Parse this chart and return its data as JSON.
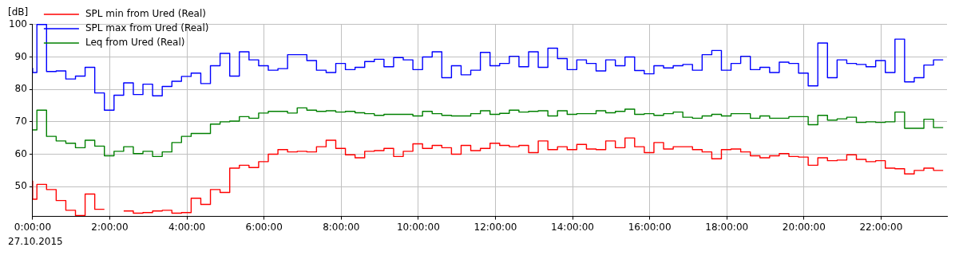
{
  "chart_data": {
    "type": "step",
    "ylabel": "[dB]",
    "annotations": [
      "27.10.2015"
    ],
    "x": [
      0,
      0.11,
      0.36,
      0.61,
      0.86,
      1.11,
      1.36,
      1.61,
      1.86,
      2.11,
      2.36,
      2.61,
      2.86,
      3.11,
      3.36,
      3.61,
      3.86,
      4.11,
      4.36,
      4.61,
      4.86,
      5.11,
      5.36,
      5.61,
      5.86,
      6.11,
      6.36,
      6.61,
      6.86,
      7.11,
      7.36,
      7.61,
      7.86,
      8.11,
      8.36,
      8.61,
      8.86,
      9.11,
      9.36,
      9.61,
      9.86,
      10.11,
      10.36,
      10.61,
      10.86,
      11.11,
      11.36,
      11.61,
      11.86,
      12.11,
      12.36,
      12.61,
      12.86,
      13.11,
      13.36,
      13.61,
      13.86,
      14.11,
      14.36,
      14.61,
      14.86,
      15.11,
      15.36,
      15.61,
      15.86,
      16.11,
      16.36,
      16.61,
      16.86,
      17.11,
      17.36,
      17.61,
      17.86,
      18.11,
      18.36,
      18.61,
      18.86,
      19.11,
      19.36,
      19.61,
      19.86,
      20.11,
      20.36,
      20.61,
      20.86,
      21.11,
      21.36,
      21.61,
      21.86,
      22.11,
      22.36,
      22.61,
      22.86,
      23.11,
      23.36,
      23.61
    ],
    "series": [
      {
        "name": "SPL min from Ured (Real)",
        "color": "#ff0000",
        "values": [
          51.8,
          46.1,
          50.7,
          49.1,
          45.7,
          42.7,
          41.1,
          47.7,
          43.0,
          null,
          42.5,
          42.5,
          41.8,
          42.0,
          42.5,
          42.7,
          41.8,
          42.0,
          46.4,
          44.5,
          49.1,
          48.2,
          55.7,
          56.6,
          55.9,
          57.7,
          60.0,
          61.4,
          60.7,
          60.9,
          60.7,
          62.3,
          64.3,
          61.8,
          59.8,
          58.9,
          60.9,
          61.1,
          61.8,
          59.3,
          60.9,
          63.2,
          61.8,
          62.7,
          62.0,
          60.0,
          62.7,
          61.1,
          61.8,
          63.4,
          62.7,
          62.3,
          62.7,
          60.5,
          64.1,
          61.4,
          62.3,
          61.4,
          63.0,
          61.6,
          61.4,
          64.1,
          62.0,
          65.0,
          62.3,
          60.5,
          63.6,
          61.6,
          62.3,
          62.3,
          61.4,
          60.7,
          58.6,
          61.4,
          61.6,
          60.7,
          59.5,
          58.9,
          59.5,
          60.2,
          59.3,
          59.1,
          56.6,
          58.9,
          58.0,
          58.2,
          59.8,
          58.4,
          57.7,
          58.0,
          55.7,
          55.5,
          53.9,
          55.0,
          55.7,
          55.0
        ]
      },
      {
        "name": "SPL max from Ured (Real)",
        "color": "#0000ff",
        "values": [
          86.6,
          85.2,
          100,
          85.5,
          85.7,
          83.2,
          84.1,
          86.8,
          78.9,
          73.6,
          78.2,
          82.0,
          78.4,
          81.6,
          78.0,
          80.9,
          82.5,
          84.0,
          85.0,
          81.8,
          87.3,
          91.1,
          84.1,
          91.6,
          89.1,
          87.3,
          85.9,
          86.4,
          90.7,
          90.7,
          88.9,
          85.9,
          85.2,
          88.0,
          86.1,
          86.8,
          88.6,
          89.3,
          87.0,
          89.8,
          89.1,
          86.1,
          90.0,
          91.6,
          83.6,
          87.3,
          84.5,
          85.9,
          91.4,
          87.3,
          88.0,
          90.2,
          87.0,
          91.6,
          86.8,
          92.7,
          89.5,
          86.1,
          89.1,
          88.0,
          85.7,
          89.1,
          87.3,
          90.0,
          85.8,
          84.8,
          87.3,
          86.6,
          87.3,
          87.7,
          85.9,
          90.7,
          92.0,
          85.9,
          88.0,
          90.2,
          86.1,
          86.8,
          85.2,
          88.4,
          88.0,
          85.0,
          81.1,
          94.3,
          83.6,
          89.1,
          88.0,
          87.7,
          87.0,
          88.9,
          85.2,
          95.5,
          82.3,
          83.6,
          87.5,
          89.1
        ]
      },
      {
        "name": "Leq from Ured (Real)",
        "color": "#008000",
        "values": [
          67.5,
          67.5,
          73.6,
          65.5,
          64.1,
          63.4,
          62.0,
          64.3,
          62.5,
          59.5,
          60.9,
          62.3,
          60.2,
          60.9,
          59.3,
          60.7,
          63.6,
          65.5,
          66.4,
          66.4,
          69.3,
          70.0,
          70.2,
          71.6,
          71.1,
          72.7,
          73.2,
          73.2,
          72.7,
          74.3,
          73.6,
          73.2,
          73.4,
          73.0,
          73.2,
          72.8,
          72.5,
          72.0,
          72.3,
          72.3,
          72.3,
          71.8,
          73.2,
          72.5,
          72.0,
          71.8,
          71.8,
          72.5,
          73.4,
          72.3,
          72.6,
          73.6,
          73.0,
          73.2,
          73.4,
          71.8,
          73.4,
          72.3,
          72.5,
          72.5,
          73.4,
          72.8,
          73.2,
          73.9,
          72.3,
          72.5,
          72.0,
          72.5,
          73.0,
          71.4,
          71.1,
          71.8,
          72.3,
          71.8,
          72.5,
          72.5,
          71.1,
          71.8,
          71.1,
          71.1,
          71.6,
          71.6,
          69.1,
          72.0,
          70.5,
          70.9,
          71.4,
          69.8,
          70.0,
          69.8,
          70.0,
          73.0,
          68.0,
          68.0,
          70.8,
          68.2
        ]
      }
    ],
    "xlim": [
      0,
      23.71
    ],
    "xticks": [
      {
        "value": 0,
        "label": "0:00:00"
      },
      {
        "value": 2,
        "label": "2:00:00"
      },
      {
        "value": 4,
        "label": "4:00:00"
      },
      {
        "value": 6,
        "label": "6:00:00"
      },
      {
        "value": 8,
        "label": "8:00:00"
      },
      {
        "value": 10,
        "label": "10:00:00"
      },
      {
        "value": 12,
        "label": "12:00:00"
      },
      {
        "value": 14,
        "label": "14:00:00"
      },
      {
        "value": 16,
        "label": "16:00:00"
      },
      {
        "value": 18,
        "label": "18:00:00"
      },
      {
        "value": 20,
        "label": "20:00:00"
      },
      {
        "value": 22,
        "label": "22:00:00"
      }
    ],
    "ylim": [
      40.8,
      100.2
    ],
    "yticks": [
      50,
      60,
      70,
      80,
      90,
      100
    ],
    "grid": true,
    "legend": "top left"
  }
}
